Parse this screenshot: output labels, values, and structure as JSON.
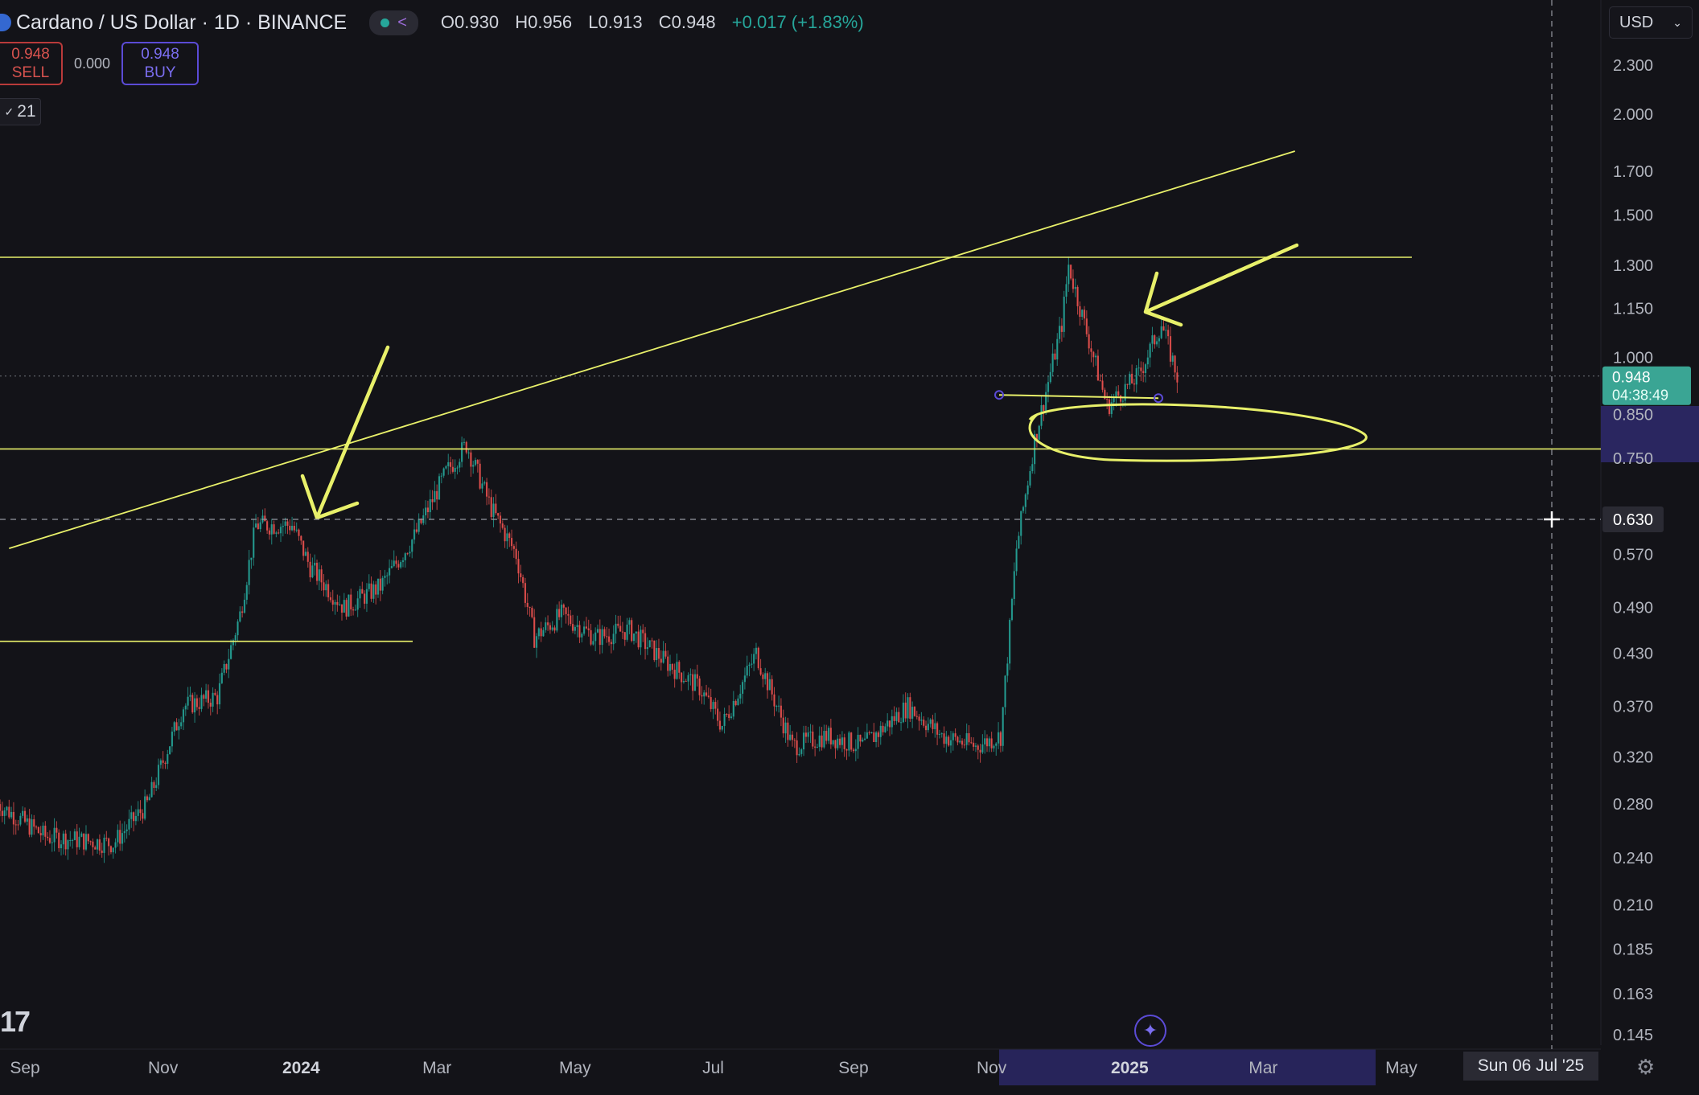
{
  "header": {
    "title": "Cardano / US Dollar · 1D · BINANCE",
    "ohlc": {
      "open": "O0.930",
      "high": "H0.956",
      "low": "L0.913",
      "close": "C0.948",
      "change": "+0.017 (+1.83%)"
    }
  },
  "trade": {
    "sell_price": "0.948",
    "sell_label": "SELL",
    "spread": "0.000",
    "buy_price": "0.948",
    "buy_label": "BUY"
  },
  "indicator_count": "21",
  "currency": "USD",
  "crosshair": {
    "price": "0.630",
    "date": "Sun 06 Jul '25"
  },
  "last_price": {
    "price": "0.948",
    "countdown": "04:38:49"
  },
  "chart_data": {
    "type": "candlestick",
    "title": "Cardano / US Dollar · 1D · BINANCE",
    "y_scale": "log",
    "y_ticks": [
      2.3,
      2.0,
      1.7,
      1.5,
      1.3,
      1.15,
      1.0,
      0.85,
      0.75,
      0.57,
      0.49,
      0.43,
      0.37,
      0.32,
      0.28,
      0.24,
      0.21,
      0.185,
      0.163,
      0.145
    ],
    "y_tick_labels": [
      "2.300",
      "2.000",
      "1.700",
      "1.500",
      "1.300",
      "1.150",
      "1.000",
      "0.850",
      "0.750",
      "0.570",
      "0.490",
      "0.430",
      "0.370",
      "0.320",
      "0.280",
      "0.240",
      "0.210",
      "0.185",
      "0.163",
      "0.145"
    ],
    "x_tick_labels": [
      "Sep",
      "Nov",
      "2024",
      "Mar",
      "May",
      "Jul",
      "Sep",
      "Nov",
      "2025",
      "Mar",
      "May"
    ],
    "x_tick_dates": [
      "2023-09-01",
      "2023-11-01",
      "2024-01-01",
      "2024-03-01",
      "2024-05-01",
      "2024-07-01",
      "2024-09-01",
      "2024-11-01",
      "2025-01-01",
      "2025-03-01",
      "2025-05-01"
    ],
    "price_path": [
      [
        "2023-08-20",
        0.28
      ],
      [
        "2023-09-10",
        0.255
      ],
      [
        "2023-10-10",
        0.25
      ],
      [
        "2023-10-25",
        0.28
      ],
      [
        "2023-11-10",
        0.37
      ],
      [
        "2023-11-25",
        0.38
      ],
      [
        "2023-12-05",
        0.48
      ],
      [
        "2023-12-12",
        0.62
      ],
      [
        "2023-12-28",
        0.62
      ],
      [
        "2024-01-05",
        0.55
      ],
      [
        "2024-01-20",
        0.49
      ],
      [
        "2024-02-05",
        0.52
      ],
      [
        "2024-02-20",
        0.6
      ],
      [
        "2024-03-05",
        0.72
      ],
      [
        "2024-03-14",
        0.78
      ],
      [
        "2024-03-25",
        0.65
      ],
      [
        "2024-04-05",
        0.57
      ],
      [
        "2024-04-13",
        0.45
      ],
      [
        "2024-04-25",
        0.48
      ],
      [
        "2024-05-10",
        0.45
      ],
      [
        "2024-05-25",
        0.46
      ],
      [
        "2024-06-10",
        0.42
      ],
      [
        "2024-06-25",
        0.39
      ],
      [
        "2024-07-05",
        0.35
      ],
      [
        "2024-07-20",
        0.43
      ],
      [
        "2024-08-05",
        0.33
      ],
      [
        "2024-08-20",
        0.34
      ],
      [
        "2024-09-05",
        0.33
      ],
      [
        "2024-09-25",
        0.37
      ],
      [
        "2024-10-10",
        0.34
      ],
      [
        "2024-10-25",
        0.33
      ],
      [
        "2024-11-05",
        0.34
      ],
      [
        "2024-11-12",
        0.58
      ],
      [
        "2024-11-20",
        0.79
      ],
      [
        "2024-12-02",
        1.1
      ],
      [
        "2024-12-05",
        1.3
      ],
      [
        "2024-12-12",
        1.1
      ],
      [
        "2024-12-22",
        0.87
      ],
      [
        "2025-01-05",
        0.95
      ],
      [
        "2025-01-15",
        1.1
      ],
      [
        "2025-01-22",
        0.948
      ]
    ],
    "annotations": {
      "horizontal_levels": [
        1.33,
        0.77,
        0.445
      ],
      "trendline": [
        [
          "2023-08-25",
          0.58
        ],
        [
          "2025-03-15",
          1.8
        ]
      ],
      "support_zone": [
        0.77,
        0.87
      ],
      "arrows": [
        "2024-01-06",
        "2025-01-15"
      ]
    }
  },
  "colors": {
    "up": "#26a69a",
    "down": "#ef5350",
    "drawing": "#e8f06a",
    "accent": "#5b4bd6"
  }
}
